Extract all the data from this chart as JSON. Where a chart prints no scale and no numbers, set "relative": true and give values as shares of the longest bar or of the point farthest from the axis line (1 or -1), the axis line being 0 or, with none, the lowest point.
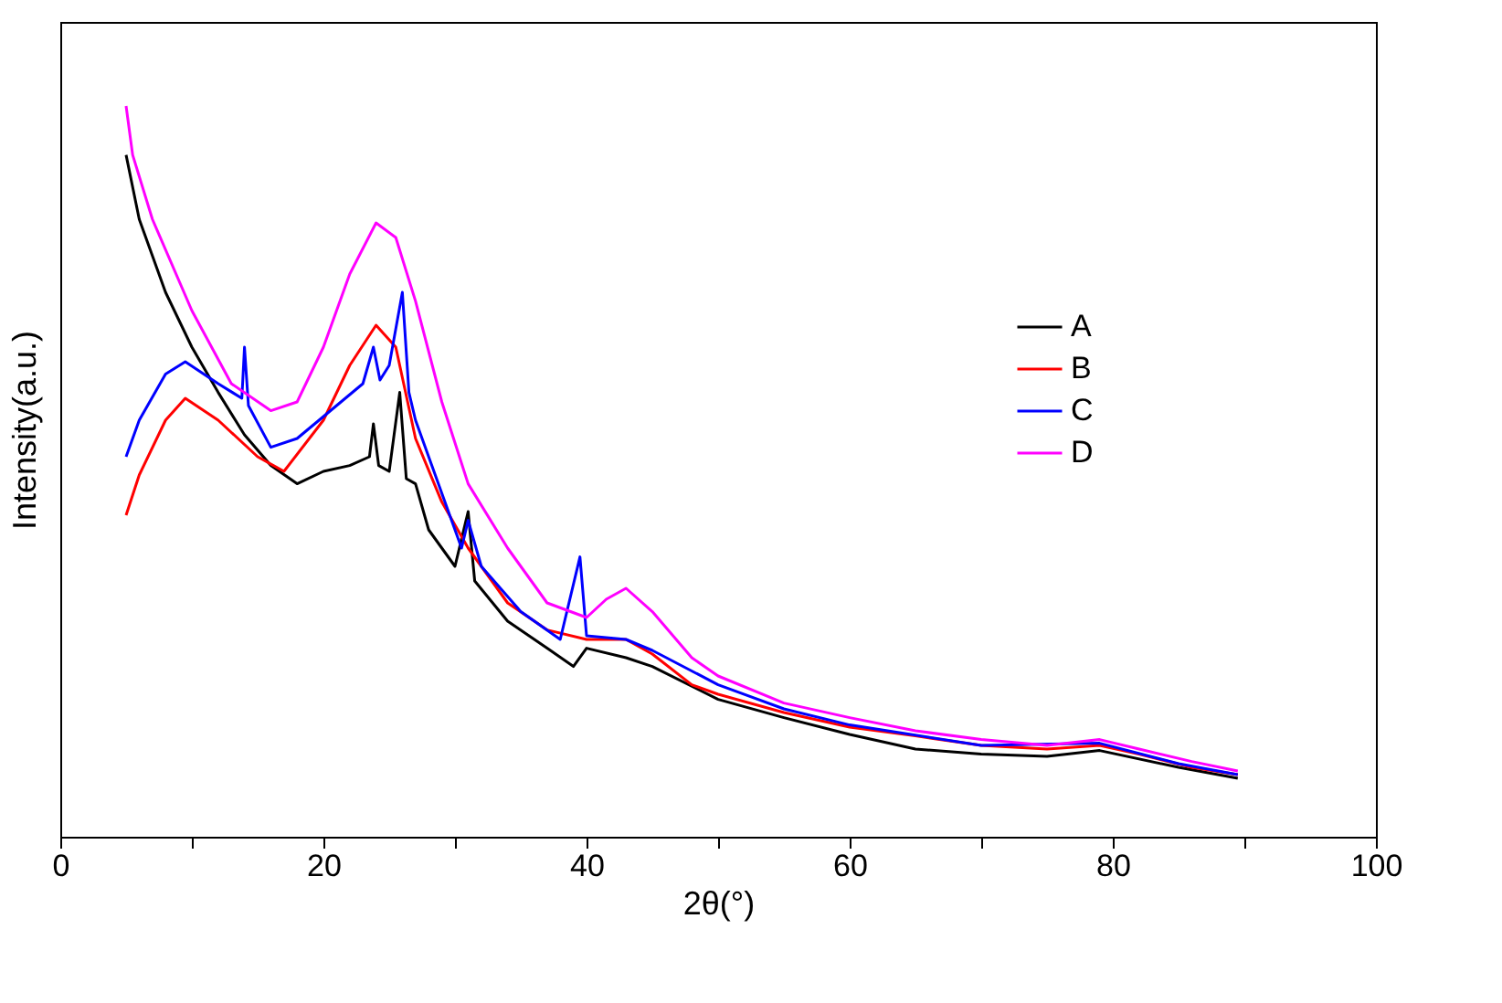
{
  "chart_data": {
    "type": "line",
    "relative": true,
    "xlabel": "2θ(°)",
    "ylabel": "Intensity(a.u.)",
    "xlim": [
      0,
      100
    ],
    "xticks": [
      0,
      {
        "value": 10,
        "label": null
      },
      20,
      {
        "value": 30,
        "label": null
      },
      40,
      {
        "value": 50,
        "label": null
      },
      60,
      {
        "value": 70,
        "label": null
      },
      80,
      {
        "value": 90,
        "label": null
      },
      100
    ],
    "grid": false,
    "legend": "top right",
    "marker": "none",
    "line_style": "solid",
    "series": [
      {
        "name": "A",
        "color": "#000000",
        "x": [
          5,
          6,
          8,
          10,
          12,
          14,
          16,
          18,
          20,
          22,
          23.5,
          23.8,
          24.2,
          25,
          25.8,
          26.3,
          27,
          28,
          30,
          31,
          31.5,
          34,
          37,
          39,
          40,
          43,
          45,
          50,
          55,
          60,
          65,
          70,
          75,
          79,
          85,
          89.5
        ],
        "values": [
          0.933,
          0.845,
          0.745,
          0.67,
          0.608,
          0.55,
          0.508,
          0.483,
          0.5,
          0.508,
          0.52,
          0.565,
          0.508,
          0.5,
          0.608,
          0.49,
          0.483,
          0.42,
          0.37,
          0.445,
          0.35,
          0.295,
          0.258,
          0.233,
          0.258,
          0.245,
          0.233,
          0.188,
          0.163,
          0.14,
          0.12,
          0.113,
          0.11,
          0.118,
          0.095,
          0.08
        ]
      },
      {
        "name": "B",
        "color": "#ff0000",
        "x": [
          5,
          6,
          8,
          9.5,
          12,
          15,
          17,
          20,
          22,
          24,
          25.5,
          27,
          29,
          31,
          34,
          37,
          40,
          43,
          45,
          48,
          50,
          55,
          60,
          65,
          70,
          75,
          79,
          82,
          86,
          89.5
        ],
        "values": [
          0.44,
          0.495,
          0.57,
          0.6,
          0.57,
          0.52,
          0.5,
          0.57,
          0.645,
          0.7,
          0.67,
          0.545,
          0.458,
          0.395,
          0.32,
          0.283,
          0.27,
          0.27,
          0.25,
          0.208,
          0.195,
          0.17,
          0.15,
          0.138,
          0.125,
          0.12,
          0.125,
          0.113,
          0.095,
          0.085
        ]
      },
      {
        "name": "C",
        "color": "#0000ff",
        "x": [
          5,
          6,
          8,
          9.5,
          12,
          13.8,
          14,
          14.3,
          16,
          18,
          20,
          23,
          23.8,
          24.3,
          25,
          26,
          26.5,
          27,
          29,
          30.5,
          31,
          32,
          35,
          38,
          39.5,
          40,
          43,
          45,
          50,
          55,
          60,
          70,
          79,
          85,
          89.5
        ],
        "values": [
          0.52,
          0.57,
          0.633,
          0.65,
          0.62,
          0.6,
          0.67,
          0.59,
          0.533,
          0.545,
          0.575,
          0.62,
          0.67,
          0.625,
          0.645,
          0.745,
          0.608,
          0.57,
          0.47,
          0.395,
          0.433,
          0.37,
          0.308,
          0.27,
          0.383,
          0.275,
          0.27,
          0.255,
          0.208,
          0.175,
          0.153,
          0.125,
          0.128,
          0.1,
          0.085
        ]
      },
      {
        "name": "D",
        "color": "#ff00ff",
        "x": [
          5,
          5.5,
          7,
          10,
          13,
          16,
          18,
          20,
          22,
          24,
          25.5,
          27,
          29,
          31,
          34,
          37,
          40,
          41.5,
          43,
          45,
          48,
          50,
          55,
          60,
          65,
          70,
          75,
          79,
          82,
          86,
          89.5
        ],
        "values": [
          1.0,
          0.933,
          0.845,
          0.72,
          0.62,
          0.583,
          0.595,
          0.67,
          0.77,
          0.84,
          0.82,
          0.733,
          0.595,
          0.483,
          0.395,
          0.32,
          0.3,
          0.325,
          0.34,
          0.308,
          0.245,
          0.22,
          0.183,
          0.163,
          0.145,
          0.133,
          0.125,
          0.133,
          0.12,
          0.103,
          0.09
        ]
      }
    ]
  }
}
